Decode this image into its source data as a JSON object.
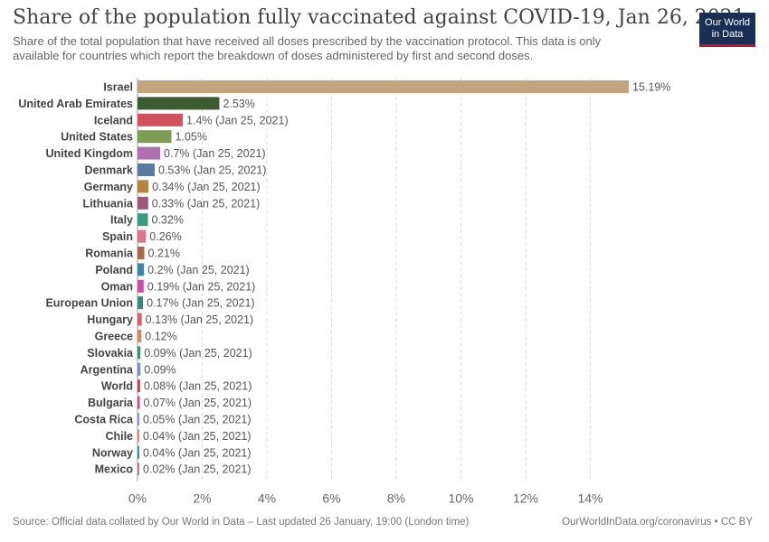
{
  "header": {
    "title": "Share of the population fully vaccinated against COVID-19, Jan 26, 2021",
    "subtitle": "Share of the total population that have received all doses prescribed by the vaccination protocol. This data is only available for countries which report the breakdown of doses administered by first and second doses."
  },
  "logo": {
    "line1": "Our World",
    "line2": "in Data",
    "bg_color": "#1b2f55",
    "accent_color": "#c8102e"
  },
  "footer": {
    "source": "Source: Official data collated by Our World in Data – Last updated 26 January, 19:00 (London time)",
    "credit": "OurWorldInData.org/coronavirus • CC BY"
  },
  "chart_data": {
    "type": "bar",
    "orientation": "horizontal",
    "title": "Share of the population fully vaccinated against COVID-19, Jan 26, 2021",
    "categories": [
      "Israel",
      "United Arab Emirates",
      "Iceland",
      "United States",
      "United Kingdom",
      "Denmark",
      "Germany",
      "Lithuania",
      "Italy",
      "Spain",
      "Romania",
      "Poland",
      "Oman",
      "European Union",
      "Hungary",
      "Greece",
      "Slovakia",
      "Argentina",
      "World",
      "Bulgaria",
      "Costa Rica",
      "Chile",
      "Norway",
      "Mexico"
    ],
    "values": [
      15.19,
      2.53,
      1.4,
      1.05,
      0.7,
      0.53,
      0.34,
      0.33,
      0.32,
      0.26,
      0.21,
      0.2,
      0.19,
      0.17,
      0.13,
      0.12,
      0.09,
      0.09,
      0.08,
      0.07,
      0.05,
      0.04,
      0.04,
      0.02
    ],
    "value_labels": [
      "15.19%",
      "2.53%",
      "1.4% (Jan 25, 2021)",
      "1.05%",
      "0.7% (Jan 25, 2021)",
      "0.53% (Jan 25, 2021)",
      "0.34% (Jan 25, 2021)",
      "0.33% (Jan 25, 2021)",
      "0.32%",
      "0.26%",
      "0.21%",
      "0.2% (Jan 25, 2021)",
      "0.19% (Jan 25, 2021)",
      "0.17% (Jan 25, 2021)",
      "0.13% (Jan 25, 2021)",
      "0.12%",
      "0.09% (Jan 25, 2021)",
      "0.09%",
      "0.08% (Jan 25, 2021)",
      "0.07% (Jan 25, 2021)",
      "0.05% (Jan 25, 2021)",
      "0.04% (Jan 25, 2021)",
      "0.04% (Jan 25, 2021)",
      "0.02% (Jan 25, 2021)"
    ],
    "colors": [
      "#c4a47c",
      "#3c5b32",
      "#d0505d",
      "#7e9d54",
      "#b06fb1",
      "#5b7aa1",
      "#b8823f",
      "#9a5a78",
      "#3c9a7e",
      "#d9748a",
      "#a5684a",
      "#3d86a7",
      "#c94fa6",
      "#3a8777",
      "#d0606e",
      "#d38a5a",
      "#3d9462",
      "#7b8fc6",
      "#b24a59",
      "#c54d8f",
      "#8a93c6",
      "#d58f78",
      "#3d8f9f",
      "#b07a8b"
    ],
    "xlim": [
      0,
      15.19
    ],
    "x_ticks": [
      0,
      2,
      4,
      6,
      8,
      10,
      12,
      14
    ],
    "x_tick_labels": [
      "0%",
      "2%",
      "4%",
      "6%",
      "8%",
      "10%",
      "12%",
      "14%"
    ],
    "grid": true,
    "legend": "none"
  }
}
